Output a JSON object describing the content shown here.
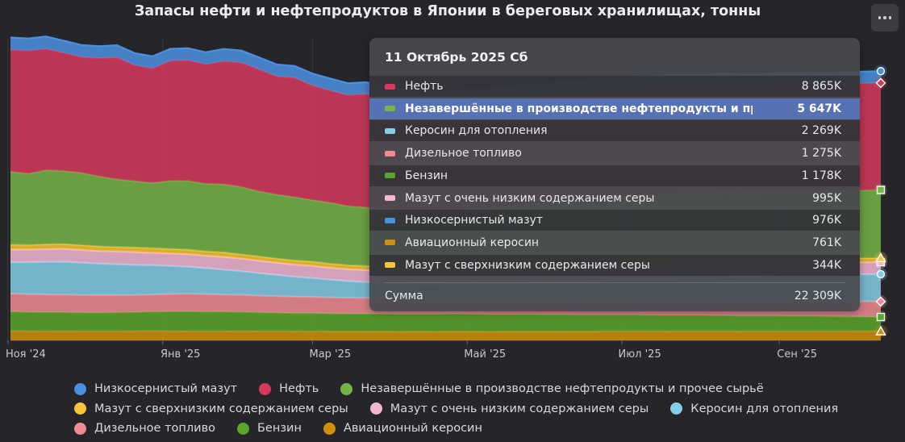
{
  "chart_data": {
    "type": "area",
    "stacked": true,
    "title": "Запасы нефти и нефтепродуктов в Японии в береговых хранилищах, тонны",
    "x_tick_labels": [
      "Ноя '24",
      "Янв '25",
      "Мар '25",
      "Май '25",
      "Июл '25",
      "Сен '25"
    ],
    "x_ticks": [
      "2024-11-01",
      "2025-01-01",
      "2025-03-01",
      "2025-05-01",
      "2025-07-01",
      "2025-09-01"
    ],
    "x": [
      "2024-11-02",
      "2024-11-09",
      "2024-11-16",
      "2024-11-23",
      "2024-11-30",
      "2024-12-07",
      "2024-12-14",
      "2024-12-21",
      "2024-12-28",
      "2025-01-04",
      "2025-01-11",
      "2025-01-18",
      "2025-01-25",
      "2025-02-01",
      "2025-02-08",
      "2025-02-15",
      "2025-02-22",
      "2025-03-01",
      "2025-03-08",
      "2025-03-15",
      "2025-03-22",
      "2025-03-29",
      "2025-04-05",
      "2025-04-12",
      "2025-04-19",
      "2025-04-26",
      "2025-05-03",
      "2025-05-10",
      "2025-05-17",
      "2025-05-24",
      "2025-05-31",
      "2025-06-07",
      "2025-06-14",
      "2025-06-21",
      "2025-06-28",
      "2025-07-05",
      "2025-07-12",
      "2025-07-19",
      "2025-07-26",
      "2025-08-02",
      "2025-08-09",
      "2025-08-16",
      "2025-08-23",
      "2025-08-30",
      "2025-09-06",
      "2025-09-13",
      "2025-09-20",
      "2025-09-27",
      "2025-10-04",
      "2025-10-11"
    ],
    "ylim": [
      0,
      25000
    ],
    "units": "тонны",
    "stack_order": [
      "Авиационный керосин",
      "Бензин",
      "Дизельное топливо",
      "Керосин для отопления",
      "Мазут с очень низким содержанием серы",
      "Мазут с сверхнизким содержанием серы",
      "Незавершённые в производстве нефтепродукты и прочее сырьё",
      "Нефть",
      "Низкосернистый мазут"
    ],
    "series": [
      {
        "name": "Авиационный керосин",
        "color": "#cf8f0d",
        "values": [
          780,
          770,
          760,
          770,
          760,
          750,
          760,
          770,
          780,
          770,
          760,
          750,
          760,
          770,
          760,
          750,
          740,
          750,
          740,
          730,
          740,
          730,
          720,
          730,
          720,
          740,
          730,
          720,
          730,
          740,
          730,
          740,
          730,
          740,
          750,
          760,
          750,
          740,
          750,
          760,
          750,
          740,
          750,
          760,
          750,
          760,
          750,
          760,
          770,
          761
        ]
      },
      {
        "name": "Бензин",
        "color": "#5aa62b",
        "values": [
          1600,
          1580,
          1570,
          1560,
          1550,
          1550,
          1560,
          1570,
          1600,
          1620,
          1640,
          1630,
          1610,
          1590,
          1560,
          1540,
          1520,
          1510,
          1490,
          1480,
          1470,
          1460,
          1450,
          1440,
          1450,
          1460,
          1440,
          1430,
          1420,
          1410,
          1400,
          1390,
          1380,
          1370,
          1360,
          1350,
          1340,
          1330,
          1320,
          1310,
          1300,
          1290,
          1280,
          1270,
          1260,
          1250,
          1230,
          1210,
          1190,
          1178
        ]
      },
      {
        "name": "Дизельное топливо",
        "color": "#f08b94",
        "values": [
          1500,
          1480,
          1470,
          1460,
          1450,
          1440,
          1430,
          1420,
          1420,
          1450,
          1460,
          1450,
          1430,
          1410,
          1390,
          1370,
          1350,
          1340,
          1330,
          1320,
          1310,
          1300,
          1290,
          1290,
          1300,
          1290,
          1280,
          1270,
          1280,
          1290,
          1300,
          1280,
          1290,
          1300,
          1310,
          1300,
          1290,
          1280,
          1300,
          1310,
          1300,
          1290,
          1300,
          1280,
          1290,
          1270,
          1280,
          1290,
          1280,
          1275
        ]
      },
      {
        "name": "Керосин для отопления",
        "color": "#84cde8",
        "values": [
          2600,
          2650,
          2700,
          2720,
          2680,
          2620,
          2560,
          2500,
          2420,
          2330,
          2240,
          2150,
          2060,
          1960,
          1860,
          1760,
          1660,
          1560,
          1460,
          1380,
          1310,
          1250,
          1200,
          1160,
          1150,
          1160,
          1190,
          1230,
          1270,
          1310,
          1360,
          1410,
          1460,
          1510,
          1560,
          1610,
          1660,
          1710,
          1760,
          1810,
          1860,
          1910,
          1960,
          2010,
          2060,
          2110,
          2160,
          2200,
          2240,
          2269
        ]
      },
      {
        "name": "Мазут с очень низким содержанием серы",
        "color": "#f5b7d3",
        "values": [
          1050,
          1040,
          1060,
          1070,
          1050,
          1040,
          1060,
          1050,
          1030,
          1020,
          1040,
          1030,
          1050,
          1040,
          1020,
          1010,
          1000,
          1010,
          990,
          980,
          990,
          980,
          970,
          980,
          990,
          980,
          970,
          980,
          990,
          1000,
          990,
          980,
          990,
          1000,
          990,
          980,
          990,
          1000,
          990,
          980,
          990,
          1000,
          990,
          1000,
          990,
          1000,
          990,
          1000,
          990,
          995
        ]
      },
      {
        "name": "Мазут с сверхнизким содержанием серы",
        "color": "#f8c43a",
        "values": [
          400,
          390,
          400,
          410,
          400,
          390,
          380,
          390,
          400,
          390,
          380,
          370,
          380,
          370,
          360,
          350,
          350,
          360,
          350,
          340,
          350,
          340,
          330,
          340,
          350,
          340,
          330,
          340,
          350,
          340,
          330,
          340,
          350,
          340,
          330,
          340,
          350,
          340,
          350,
          340,
          350,
          340,
          350,
          340,
          350,
          340,
          350,
          340,
          345,
          344
        ]
      },
      {
        "name": "Незавершённые в производстве нефтепродукты и прочее сырьё",
        "color": "#76b448",
        "values": [
          6070,
          5900,
          6150,
          6050,
          6000,
          5800,
          5600,
          5500,
          5400,
          5650,
          5700,
          5600,
          5650,
          5580,
          5400,
          5300,
          5250,
          5100,
          5050,
          4900,
          4850,
          4800,
          4750,
          4700,
          4650,
          4800,
          4900,
          5000,
          5100,
          5200,
          5300,
          5400,
          5450,
          5500,
          5550,
          5600,
          5650,
          5700,
          5700,
          5650,
          5700,
          5650,
          5600,
          5650,
          5600,
          5650,
          5600,
          5650,
          5620,
          5647
        ]
      },
      {
        "name": "Нефть",
        "color": "#d6395c",
        "values": [
          10100,
          10200,
          10050,
          9800,
          9600,
          9800,
          10100,
          9600,
          9500,
          9950,
          10000,
          9900,
          10200,
          10300,
          10100,
          9800,
          9900,
          9500,
          9300,
          9200,
          9400,
          9300,
          9100,
          9000,
          8900,
          8950,
          9000,
          8900,
          8850,
          8800,
          8850,
          8900,
          8900,
          8850,
          8800,
          8850,
          8900,
          8850,
          8800,
          8850,
          8900,
          8850,
          8800,
          8850,
          8900,
          8850,
          8800,
          8850,
          8860,
          8865
        ]
      },
      {
        "name": "Низкосернистый мазут",
        "color": "#4c91e0",
        "values": [
          1000,
          1010,
          1020,
          1000,
          980,
          990,
          1010,
          1000,
          990,
          980,
          990,
          1000,
          1010,
          1000,
          990,
          980,
          970,
          980,
          990,
          980,
          970,
          980,
          990,
          980,
          970,
          980,
          990,
          980,
          970,
          980,
          990,
          980,
          970,
          980,
          990,
          980,
          970,
          980,
          990,
          980,
          970,
          980,
          990,
          980,
          970,
          980,
          990,
          980,
          975,
          976
        ]
      }
    ],
    "legend": {
      "placement": "bottom",
      "order": [
        "Низкосернистый мазут",
        "Нефть",
        "Незавершённые в производстве нефтепродукты и прочее сырьё",
        "Мазут с сверхнизким содержанием серы",
        "Мазут с очень низким содержанием серы",
        "Керосин для отопления",
        "Дизельное топливо",
        "Бензин",
        "Авиационный керосин"
      ]
    },
    "grid": "vertical-only",
    "tooltip": {
      "date": "11 Октябрь 2025 Сб",
      "highlighted": "Незавершённые в производстве нефтепродукты и прочее сырьё",
      "rows": [
        {
          "name": "Нефть",
          "color": "#d6395c",
          "value": "8 865K"
        },
        {
          "name": "Незавершённые в производстве нефтепродукты и прочее сырьё",
          "color": "#76b448",
          "value": "5 647K"
        },
        {
          "name": "Керосин для отопления",
          "color": "#84cde8",
          "value": "2 269K"
        },
        {
          "name": "Дизельное топливо",
          "color": "#f08b94",
          "value": "1 275K"
        },
        {
          "name": "Бензин",
          "color": "#5aa62b",
          "value": "1 178K"
        },
        {
          "name": "Мазут с очень низким содержанием серы",
          "color": "#f5b7d3",
          "value": "995K"
        },
        {
          "name": "Низкосернистый мазут",
          "color": "#4c91e0",
          "value": "976K"
        },
        {
          "name": "Авиационный керосин",
          "color": "#cf8f0d",
          "value": "761K"
        },
        {
          "name": "Мазут с сверхнизким содержанием серы",
          "color": "#f8c43a",
          "value": "344K"
        }
      ],
      "sum_label": "Сумма",
      "sum_value": "22 309K"
    }
  },
  "menu_icon": "more-horizontal-icon"
}
